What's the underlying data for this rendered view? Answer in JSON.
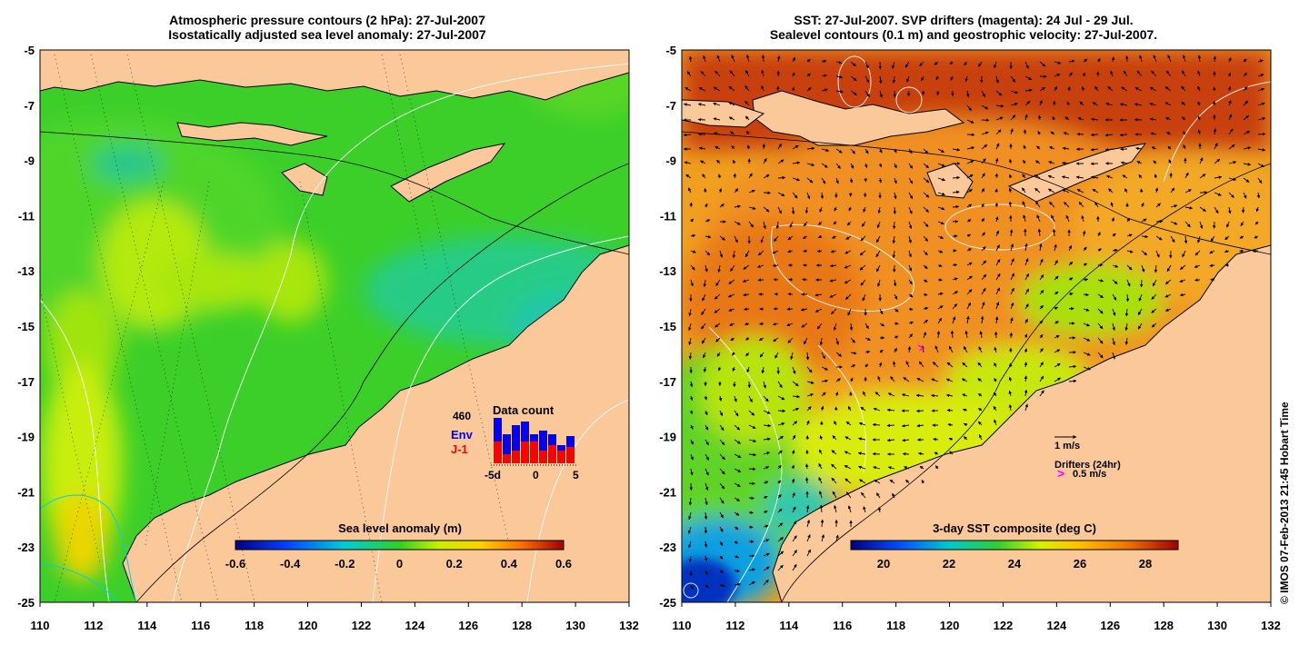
{
  "left_panel": {
    "title_line1": "Atmospheric pressure contours (2 hPa): 27-Jul-2007",
    "title_line2": "Isostatically adjusted sea level anomaly: 27-Jul-2007",
    "colorbar_title": "Sea level anomaly (m)",
    "colorbar_ticks": [
      "-0.6",
      "-0.4",
      "-0.2",
      "0",
      "0.2",
      "0.4",
      "0.6"
    ],
    "inset": {
      "total": "460",
      "title": "Data count",
      "env_label": "Env",
      "j1_label": "J-1",
      "x_ticks": [
        "-5d",
        "0",
        "5"
      ],
      "env_color": "#0000ff",
      "j1_color": "#ff0000"
    }
  },
  "right_panel": {
    "title_line1": "SST: 27-Jul-2007. SVP drifters (magenta): 24 Jul - 29 Jul.",
    "title_line2": "Sealevel contours (0.1 m) and geostrophic velocity: 27-Jul-2007.",
    "colorbar_title": "3-day SST composite (deg C)",
    "colorbar_ticks": [
      "20",
      "22",
      "24",
      "26",
      "28"
    ],
    "velocity_scale_label": "1 m/s",
    "drifters_label": "Drifters (24hr)",
    "drifter_scale_label": "0.5 m/s",
    "drifter_color": "#ff00ff"
  },
  "axes": {
    "x_ticks": [
      "110",
      "112",
      "114",
      "116",
      "118",
      "120",
      "122",
      "124",
      "126",
      "128",
      "130",
      "132"
    ],
    "y_ticks": [
      "-5",
      "-7",
      "-9",
      "-11",
      "-13",
      "-15",
      "-17",
      "-19",
      "-21",
      "-23",
      "-25"
    ]
  },
  "colors": {
    "land": "#fbc89a",
    "coast": "#000000"
  },
  "credit": "© IMOS 07-Feb-2013 21:45 Hobart Time"
}
